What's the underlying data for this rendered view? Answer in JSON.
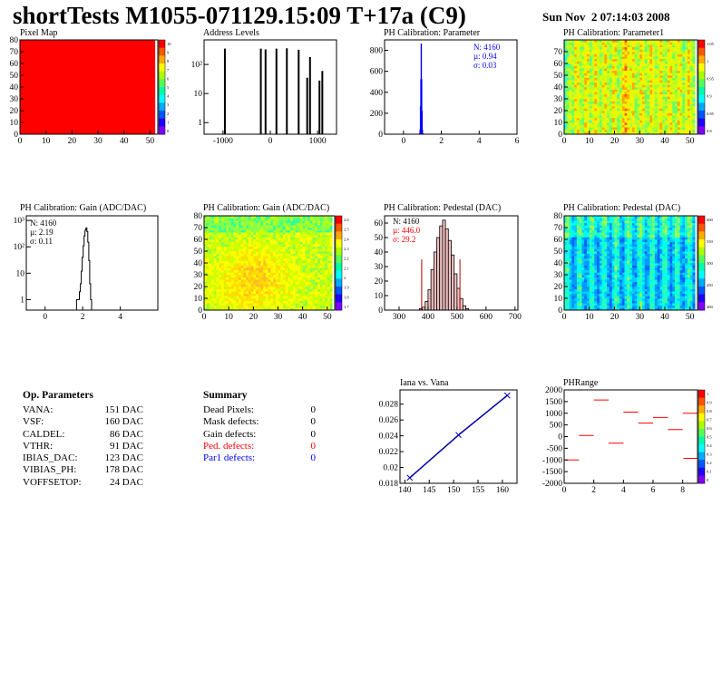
{
  "header": {
    "title": "shortTests M1055-071129.15:09 T+17a (C9)",
    "date": "Sun Nov  2 07:14:03 2008"
  },
  "palette": {
    "red": "#ff0000",
    "blue": "#0000ff",
    "dark_red": "#b00000"
  },
  "chart_data": [
    {
      "type": "heatmap",
      "title": "Pixel Map",
      "xlim": [
        0,
        53
      ],
      "ylim": [
        0,
        80
      ],
      "xticks": [
        0,
        10,
        20,
        30,
        40,
        50
      ],
      "yticks": [
        0,
        10,
        20,
        30,
        40,
        50,
        60,
        70,
        80
      ],
      "fill": "uniform",
      "fill_color": "#ff0000",
      "zticks": [
        "10",
        "9",
        "8",
        "7",
        "6",
        "5",
        "4",
        "3",
        "2",
        "1",
        "0"
      ]
    },
    {
      "type": "bar",
      "title": "Address Levels",
      "yscale": "log",
      "xlim": [
        -1400,
        1400
      ],
      "xticks": [
        -1000,
        0,
        1000
      ],
      "ylim": [
        0.4,
        700
      ],
      "yticks": [
        "1",
        "10",
        "10²"
      ],
      "peaks": [
        {
          "x": -960,
          "y": 350
        },
        {
          "x": -200,
          "y": 350
        },
        {
          "x": -100,
          "y": 330
        },
        {
          "x": 130,
          "y": 350
        },
        {
          "x": 350,
          "y": 360
        },
        {
          "x": 600,
          "y": 320
        },
        {
          "x": 780,
          "y": 35
        },
        {
          "x": 840,
          "y": 180
        },
        {
          "x": 1040,
          "y": 28
        },
        {
          "x": 1100,
          "y": 60
        }
      ]
    },
    {
      "type": "bar",
      "title": "PH Calibration: Parameter",
      "xlim": [
        -1,
        6
      ],
      "xticks": [
        0,
        2,
        4,
        6
      ],
      "ylim": [
        0,
        900
      ],
      "yticks": [
        0,
        200,
        400,
        600,
        800
      ],
      "stats": [
        "N: 4160",
        "µ: 0.94",
        "σ: 0.03"
      ],
      "bins": [
        [
          0.86,
          5
        ],
        [
          0.88,
          40
        ],
        [
          0.9,
          260
        ],
        [
          0.92,
          520
        ],
        [
          0.94,
          860
        ],
        [
          0.96,
          520
        ],
        [
          0.98,
          220
        ],
        [
          1.0,
          40
        ],
        [
          1.02,
          5
        ]
      ]
    },
    {
      "type": "heatmap",
      "title": "PH Calibration: Parameter1",
      "xlim": [
        0,
        53
      ],
      "ylim": [
        0,
        80
      ],
      "xticks": [
        0,
        10,
        20,
        30,
        40,
        50
      ],
      "yticks": [
        0,
        10,
        20,
        30,
        40,
        50,
        60,
        70
      ],
      "zticks": [
        "1.05",
        "1",
        "0.95",
        "0.9",
        "0.85",
        "0.8"
      ]
    },
    {
      "type": "bar",
      "title": "PH Calibration: Gain (ADC/DAC)",
      "yscale": "log",
      "xlim": [
        -1,
        6
      ],
      "xticks": [
        0,
        2,
        4
      ],
      "ylim": [
        0.4,
        1500
      ],
      "yticks": [
        "1",
        "10",
        "10²",
        "10³"
      ],
      "stats": [
        "N: 4160",
        "µ: 2.19",
        "σ: 0.11"
      ],
      "bins": [
        [
          1.7,
          1
        ],
        [
          1.8,
          1
        ],
        [
          1.85,
          2
        ],
        [
          1.9,
          4
        ],
        [
          1.95,
          12
        ],
        [
          2.0,
          40
        ],
        [
          2.05,
          110
        ],
        [
          2.1,
          260
        ],
        [
          2.15,
          430
        ],
        [
          2.2,
          520
        ],
        [
          2.25,
          380
        ],
        [
          2.3,
          150
        ],
        [
          2.35,
          30
        ],
        [
          2.4,
          4
        ],
        [
          2.45,
          1
        ]
      ]
    },
    {
      "type": "heatmap",
      "title": "PH Calibration: Gain (ADC/DAC)",
      "xlim": [
        0,
        53
      ],
      "ylim": [
        0,
        80
      ],
      "xticks": [
        0,
        10,
        20,
        30,
        40,
        50
      ],
      "yticks": [
        0,
        10,
        20,
        30,
        40,
        50,
        60,
        70,
        80
      ],
      "zticks": [
        "2.6",
        "2.5",
        "2.4",
        "2.3",
        "2.2",
        "2.1",
        "2",
        "1.9",
        "1.8",
        "1.7"
      ]
    },
    {
      "type": "bar",
      "title": "PH Calibration: Pedestal (DAC)",
      "xlim": [
        250,
        710
      ],
      "xticks": [
        300,
        400,
        500,
        600,
        700
      ],
      "ylim": [
        0,
        65
      ],
      "yticks": [
        0,
        10,
        20,
        30,
        40,
        50,
        60
      ],
      "stats": [
        "N: 4160",
        "µ: 446.0",
        "σ: 29.2"
      ],
      "cut_lines": [
        378,
        510
      ],
      "bins": [
        [
          370,
          1
        ],
        [
          380,
          2
        ],
        [
          390,
          6
        ],
        [
          400,
          14
        ],
        [
          410,
          28
        ],
        [
          420,
          40
        ],
        [
          430,
          50
        ],
        [
          440,
          58
        ],
        [
          450,
          62
        ],
        [
          460,
          56
        ],
        [
          470,
          48
        ],
        [
          480,
          38
        ],
        [
          490,
          25
        ],
        [
          500,
          15
        ],
        [
          510,
          8
        ],
        [
          520,
          3
        ],
        [
          530,
          1
        ]
      ]
    },
    {
      "type": "heatmap",
      "title": "PH Calibration: Pedestal (DAC)",
      "xlim": [
        0,
        53
      ],
      "ylim": [
        0,
        80
      ],
      "xticks": [
        0,
        10,
        20,
        30,
        40,
        50
      ],
      "yticks": [
        0,
        10,
        20,
        30,
        40,
        50,
        60,
        70,
        80
      ],
      "zticks": [
        "600",
        "550",
        "500",
        "450",
        "400"
      ]
    },
    {
      "type": "line",
      "title": "Iana vs. Vana",
      "x": [
        141,
        151,
        161
      ],
      "y": [
        0.0187,
        0.0241,
        0.0291
      ],
      "xlim": [
        139,
        163
      ],
      "xticks": [
        140,
        145,
        150,
        155,
        160
      ],
      "ylim": [
        0.018,
        0.0298
      ],
      "yticks": [
        "0.018",
        "0.02",
        "0.022",
        "0.024",
        "0.026",
        "0.028"
      ],
      "color": "#0000aa"
    },
    {
      "type": "scatter",
      "title": "PHRange",
      "xlim": [
        0,
        9
      ],
      "xticks": [
        0,
        2,
        4,
        6,
        8
      ],
      "ylim": [
        -2000,
        2000
      ],
      "yticks": [
        2000,
        1500,
        1000,
        500,
        0,
        -500,
        -1000,
        -1500,
        -2000
      ],
      "zticks": [
        "1",
        "0.9",
        "0.8",
        "0.7",
        "0.6",
        "0.5",
        "0.4",
        "0.3",
        "0.2",
        "0.1",
        "0"
      ],
      "segments": [
        [
          0,
          -1000
        ],
        [
          1,
          50
        ],
        [
          2,
          1570
        ],
        [
          3,
          -280
        ],
        [
          4,
          1050
        ],
        [
          5,
          580
        ],
        [
          6,
          820
        ],
        [
          7,
          300
        ],
        [
          8,
          1000
        ],
        [
          8.05,
          -930
        ]
      ]
    }
  ],
  "op_params": {
    "title": "Op. Parameters",
    "rows": [
      {
        "name": "VANA:",
        "value": "151 DAC"
      },
      {
        "name": "VSF:",
        "value": "160 DAC"
      },
      {
        "name": "CALDEL:",
        "value": "86 DAC"
      },
      {
        "name": "VTHR:",
        "value": "91 DAC"
      },
      {
        "name": "IBIAS_DAC:",
        "value": "123 DAC"
      },
      {
        "name": "VIBIAS_PH:",
        "value": "178 DAC"
      },
      {
        "name": "VOFFSETOP:",
        "value": "24 DAC"
      }
    ]
  },
  "summary": {
    "title": "Summary",
    "rows": [
      {
        "name": "Dead Pixels:",
        "value": "0",
        "color": "#000000"
      },
      {
        "name": "Mask defects:",
        "value": "0",
        "color": "#000000"
      },
      {
        "name": "Gain defects:",
        "value": "0",
        "color": "#000000"
      },
      {
        "name": "Ped. defects:",
        "value": "0",
        "color": "#ff0000"
      },
      {
        "name": "Par1 defects:",
        "value": "0",
        "color": "#0000ff"
      }
    ]
  }
}
